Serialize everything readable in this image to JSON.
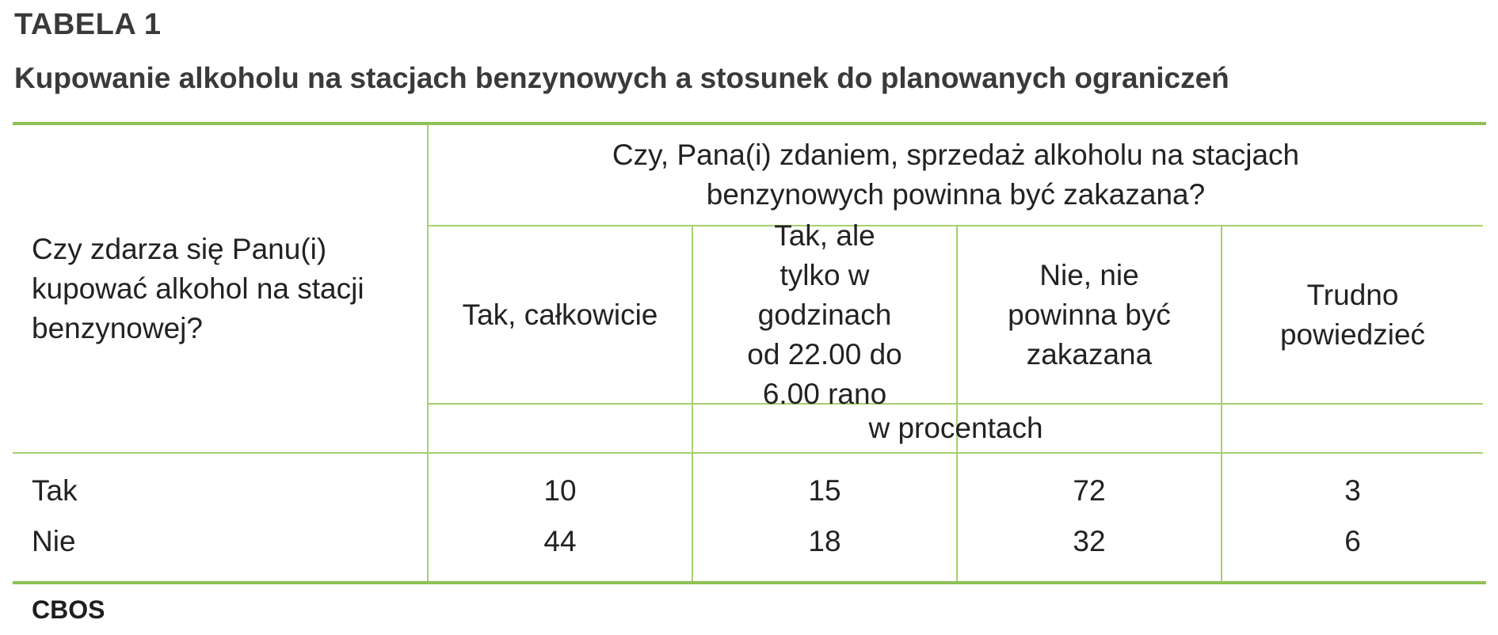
{
  "table_number": "TABELA 1",
  "title": "Kupowanie alkoholu na stacjach benzynowych a stosunek do planowanych ograniczeń",
  "header": {
    "row_question": "Czy zdarza się Panu(i) kupować alkohol na stacji benzynowej?",
    "column_question": "Czy, Pana(i) zdaniem, sprzedaż alkoholu na stacjach benzynowych powinna być zakazana?",
    "columns": [
      "Tak, całkowicie",
      "Tak, ale tylko w godzinach od 22.00 do 6.00 rano",
      "Nie, nie powinna być zakazana",
      "Trudno powiedzieć"
    ],
    "unit": "w procentach"
  },
  "rows": [
    {
      "label": "Tak",
      "values": [
        "10",
        "15",
        "72",
        "3"
      ]
    },
    {
      "label": "Nie",
      "values": [
        "44",
        "18",
        "32",
        "6"
      ]
    }
  ],
  "source": "CBOS",
  "colors": {
    "rule_accent": "#8cc152",
    "grid_line": "#a6d070"
  }
}
